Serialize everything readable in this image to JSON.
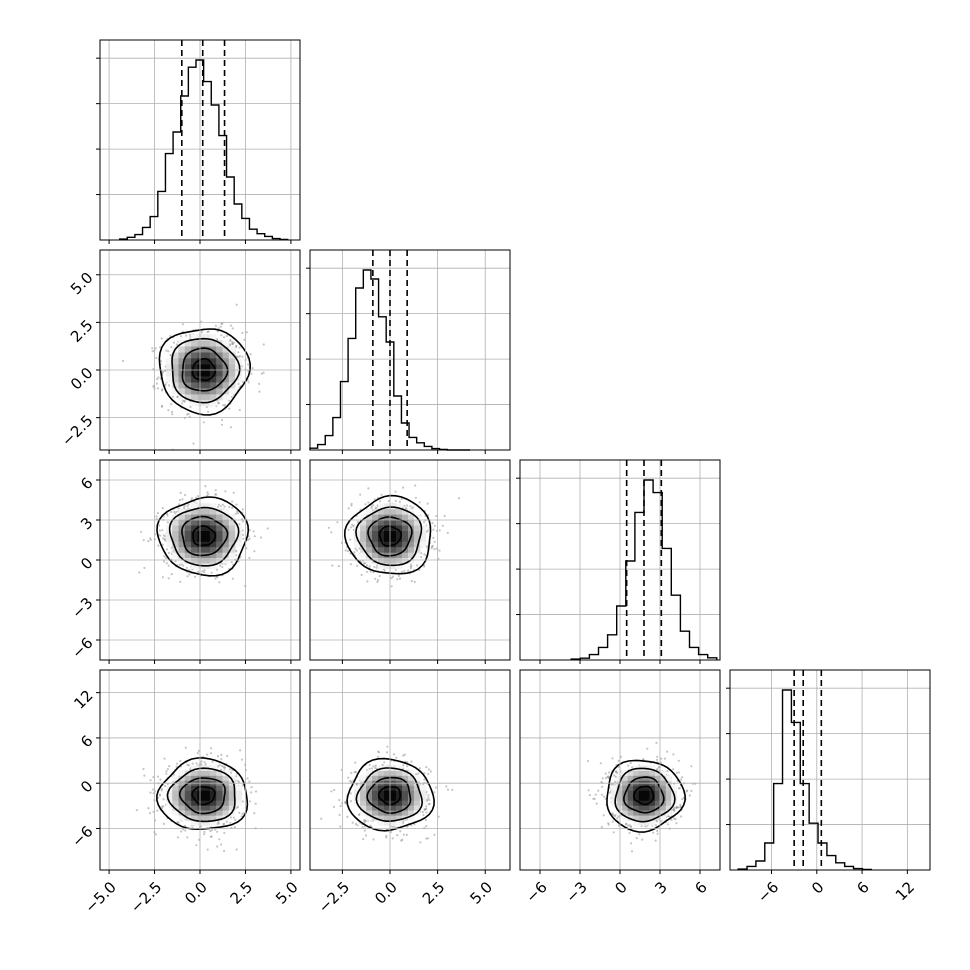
{
  "figure": {
    "kind": "corner-plot",
    "parameters": 4
  },
  "chart_data": {
    "type": "corner",
    "grid": true,
    "quantile_style": "dashed",
    "dims": [
      {
        "range": [
          -5.5,
          5.5
        ],
        "ticks": [
          -5.0,
          -2.5,
          0.0,
          2.5,
          5.0
        ],
        "tick_labels": [
          "−5.0",
          "−2.5",
          "0.0",
          "2.5",
          "5.0"
        ],
        "quantiles": [
          -1.0,
          0.15,
          1.35
        ],
        "mean": 0.2,
        "sd": 1.1,
        "hist_peak_bin": [
          0.0,
          0.4
        ],
        "hist": [
          0.005,
          0.015,
          0.03,
          0.07,
          0.13,
          0.27,
          0.48,
          0.6,
          0.8,
          0.96,
          1.0,
          0.88,
          0.75,
          0.58,
          0.35,
          0.2,
          0.12,
          0.06,
          0.035,
          0.02,
          0.008,
          0.003
        ]
      },
      {
        "range": [
          -4.2,
          6.3
        ],
        "ticks": [
          -2.5,
          0.0,
          2.5,
          5.0
        ],
        "tick_labels": [
          "−2.5",
          "0.0",
          "2.5",
          "5.0"
        ],
        "quantiles": [
          -0.9,
          0.0,
          0.9
        ],
        "mean": 0.0,
        "sd": 1.0,
        "hist": [
          0.01,
          0.03,
          0.08,
          0.18,
          0.38,
          0.62,
          0.9,
          1.0,
          0.95,
          0.74,
          0.6,
          0.3,
          0.15,
          0.07,
          0.04,
          0.02,
          0.008,
          0.003,
          0,
          0,
          0
        ]
      },
      {
        "range": [
          -7.5,
          7.5
        ],
        "ticks": [
          -6,
          -3,
          0,
          3,
          6
        ],
        "tick_labels": [
          "−6",
          "−3",
          "0",
          "3",
          "6"
        ],
        "quantiles": [
          0.5,
          1.8,
          3.1
        ],
        "mean": 1.8,
        "sd": 1.3,
        "hist": [
          0.005,
          0.01,
          0.03,
          0.07,
          0.14,
          0.3,
          0.55,
          0.82,
          1.0,
          0.93,
          0.62,
          0.36,
          0.16,
          0.07,
          0.03,
          0.012
        ]
      },
      {
        "range": [
          -11.5,
          15.0
        ],
        "ticks": [
          -6,
          0,
          6,
          12
        ],
        "tick_labels": [
          "−6",
          "0",
          "6",
          "12"
        ],
        "quantiles": [
          -3.0,
          -1.8,
          0.6
        ],
        "mean": -1.6,
        "sd": 2.1,
        "hist": [
          0.005,
          0.02,
          0.05,
          0.15,
          0.48,
          1.0,
          0.82,
          0.48,
          0.26,
          0.15,
          0.08,
          0.04,
          0.02,
          0.008,
          0.003
        ]
      }
    ],
    "pairs": [
      {
        "x_dim": 0,
        "y_dim": 1,
        "corr": 0.0
      },
      {
        "x_dim": 0,
        "y_dim": 2,
        "corr": 0.0
      },
      {
        "x_dim": 1,
        "y_dim": 2,
        "corr": 0.0
      },
      {
        "x_dim": 0,
        "y_dim": 3,
        "corr": 0.0
      },
      {
        "x_dim": 1,
        "y_dim": 3,
        "corr": 0.0
      },
      {
        "x_dim": 2,
        "y_dim": 3,
        "corr": 0.0
      }
    ],
    "contour_levels_sigma": [
      0.5,
      1.0,
      1.5,
      2.0
    ],
    "colors": {
      "line": "#000000",
      "grid": "#b0b0b0",
      "points": "#7f7f7f",
      "density_dark": "#000000",
      "density_light": "#ffffff"
    }
  }
}
